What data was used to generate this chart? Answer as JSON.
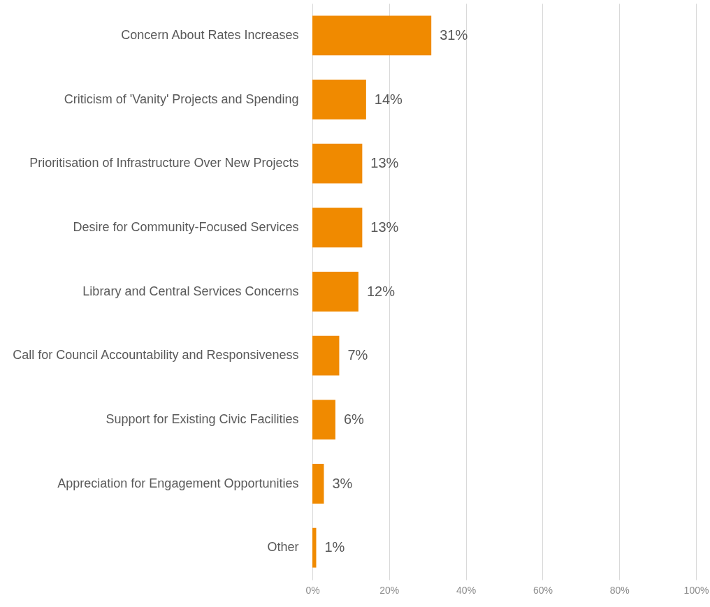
{
  "chart_data": {
    "type": "bar",
    "orientation": "horizontal",
    "categories": [
      "Concern About Rates Increases",
      "Criticism of 'Vanity' Projects and Spending",
      "Prioritisation of Infrastructure Over New Projects",
      "Desire for Community-Focused Services",
      "Library and Central Services Concerns",
      "Call for Council Accountability and Responsiveness",
      "Support for Existing Civic Facilities",
      "Appreciation for Engagement Opportunities",
      "Other"
    ],
    "values": [
      31,
      14,
      13,
      13,
      12,
      7,
      6,
      3,
      1
    ],
    "value_labels": [
      "31%",
      "14%",
      "13%",
      "13%",
      "12%",
      "7%",
      "6%",
      "3%",
      "1%"
    ],
    "color": "#f08a00",
    "xlim": [
      0,
      100
    ],
    "xticks": [
      {
        "value": 0,
        "label": "0%"
      },
      {
        "value": 20,
        "label": "20%"
      },
      {
        "value": 40,
        "label": "40%"
      },
      {
        "value": 60,
        "label": "60%"
      },
      {
        "value": 80,
        "label": "80%"
      },
      {
        "value": 100,
        "label": "100%"
      }
    ],
    "grid": "x"
  }
}
